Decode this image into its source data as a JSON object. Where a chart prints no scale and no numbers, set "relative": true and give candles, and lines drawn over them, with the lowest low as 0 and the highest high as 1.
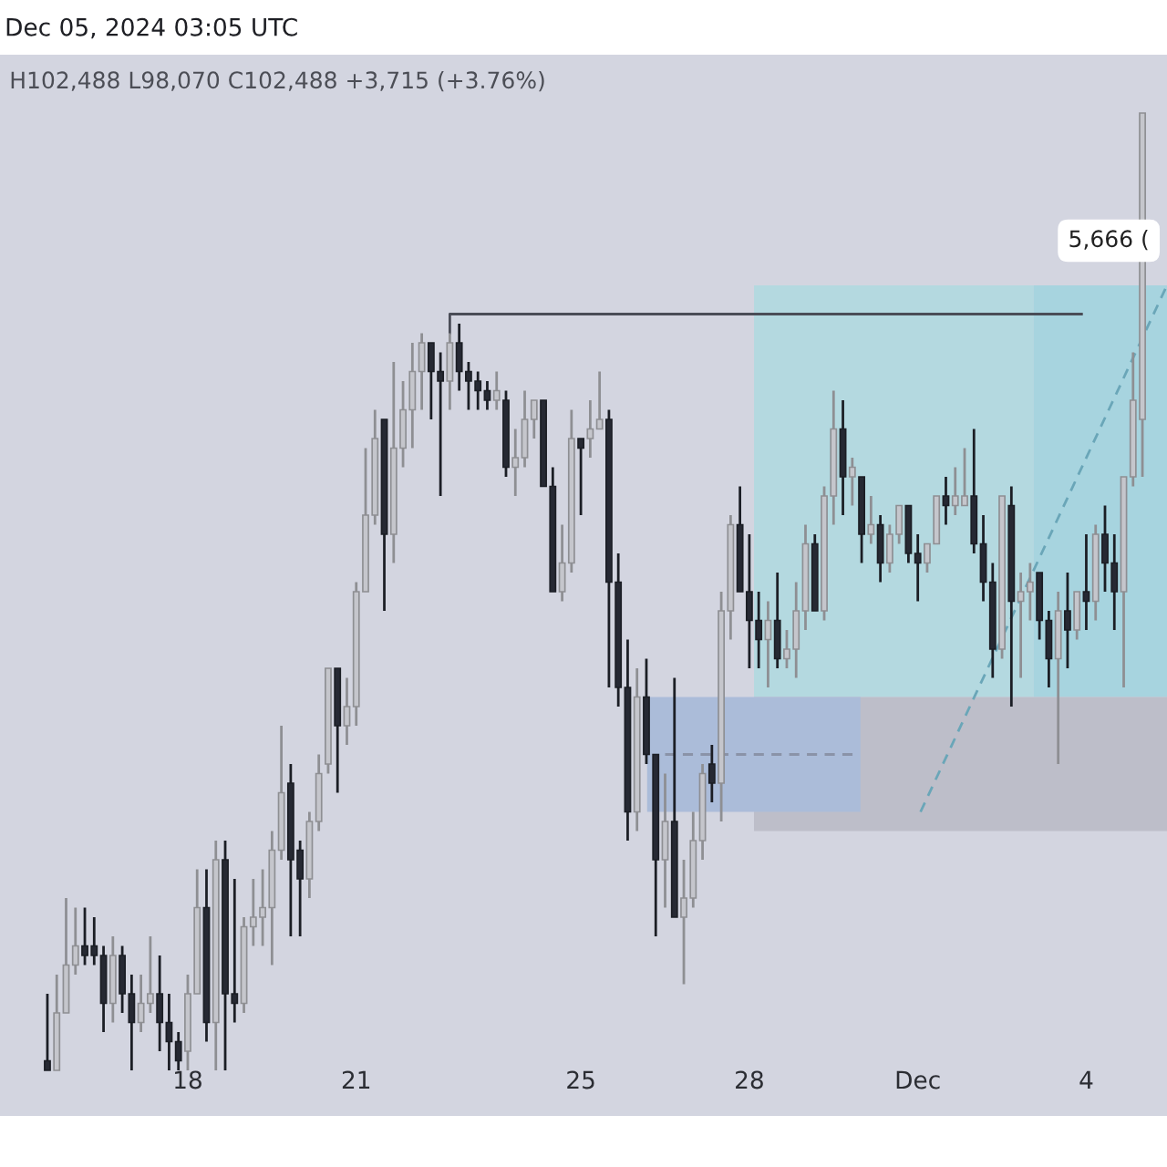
{
  "chart_data": {
    "type": "candlestick",
    "title": "Dec 05, 2024 03:05 UTC",
    "subtitle": "H102,488 L98,070 C102,488 +3,715 (+3.76%)",
    "relative": true,
    "tick_labels": "x",
    "xlim": [
      "2024-11-14T15:45",
      "2024-12-05T10:30"
    ],
    "xticks": [
      {
        "value": "2024-11-18",
        "label": "18"
      },
      {
        "value": "2024-11-21",
        "label": "21"
      },
      {
        "value": "2024-11-25",
        "label": "25"
      },
      {
        "value": "2024-11-28",
        "label": "28"
      },
      {
        "value": "2024-12-01",
        "label": "Dec"
      },
      {
        "value": "2024-12-04",
        "label": "4"
      }
    ],
    "x": [
      "2024-11-15T12:00",
      "2024-11-15T16:00",
      "2024-11-15T20:00",
      "2024-11-16T00:00",
      "2024-11-16T04:00",
      "2024-11-16T08:00",
      "2024-11-16T12:00",
      "2024-11-16T16:00",
      "2024-11-16T20:00",
      "2024-11-17T00:00",
      "2024-11-17T04:00",
      "2024-11-17T08:00",
      "2024-11-17T12:00",
      "2024-11-17T16:00",
      "2024-11-17T20:00",
      "2024-11-18T00:00",
      "2024-11-18T04:00",
      "2024-11-18T08:00",
      "2024-11-18T12:00",
      "2024-11-18T16:00",
      "2024-11-18T20:00",
      "2024-11-19T00:00",
      "2024-11-19T04:00",
      "2024-11-19T08:00",
      "2024-11-19T12:00",
      "2024-11-19T16:00",
      "2024-11-19T20:00",
      "2024-11-20T00:00",
      "2024-11-20T04:00",
      "2024-11-20T08:00",
      "2024-11-20T12:00",
      "2024-11-20T16:00",
      "2024-11-20T20:00",
      "2024-11-21T00:00",
      "2024-11-21T04:00",
      "2024-11-21T08:00",
      "2024-11-21T12:00",
      "2024-11-21T16:00",
      "2024-11-21T20:00",
      "2024-11-22T00:00",
      "2024-11-22T04:00",
      "2024-11-22T08:00",
      "2024-11-22T12:00",
      "2024-11-22T16:00",
      "2024-11-22T20:00",
      "2024-11-23T00:00",
      "2024-11-23T04:00",
      "2024-11-23T08:00",
      "2024-11-23T12:00",
      "2024-11-23T16:00",
      "2024-11-23T20:00",
      "2024-11-24T00:00",
      "2024-11-24T04:00",
      "2024-11-24T08:00",
      "2024-11-24T12:00",
      "2024-11-24T16:00",
      "2024-11-24T20:00",
      "2024-11-25T00:00",
      "2024-11-25T04:00",
      "2024-11-25T08:00",
      "2024-11-25T12:00",
      "2024-11-25T16:00",
      "2024-11-25T20:00",
      "2024-11-26T00:00",
      "2024-11-26T04:00",
      "2024-11-26T08:00",
      "2024-11-26T12:00",
      "2024-11-26T16:00",
      "2024-11-26T20:00",
      "2024-11-27T00:00",
      "2024-11-27T04:00",
      "2024-11-27T08:00",
      "2024-11-27T12:00",
      "2024-11-27T16:00",
      "2024-11-27T20:00",
      "2024-11-28T00:00",
      "2024-11-28T04:00",
      "2024-11-28T08:00",
      "2024-11-28T12:00",
      "2024-11-28T16:00",
      "2024-11-28T20:00",
      "2024-11-29T00:00",
      "2024-11-29T04:00",
      "2024-11-29T08:00",
      "2024-11-29T12:00",
      "2024-11-29T16:00",
      "2024-11-29T20:00",
      "2024-11-30T00:00",
      "2024-11-30T04:00",
      "2024-11-30T08:00",
      "2024-11-30T12:00",
      "2024-11-30T16:00",
      "2024-11-30T20:00",
      "2024-12-01T00:00",
      "2024-12-01T04:00",
      "2024-12-01T08:00",
      "2024-12-01T12:00",
      "2024-12-01T16:00",
      "2024-12-01T20:00",
      "2024-12-02T00:00",
      "2024-12-02T04:00",
      "2024-12-02T08:00",
      "2024-12-02T12:00",
      "2024-12-02T16:00",
      "2024-12-02T20:00",
      "2024-12-03T00:00",
      "2024-12-03T04:00",
      "2024-12-03T08:00",
      "2024-12-03T12:00",
      "2024-12-03T16:00",
      "2024-12-03T20:00",
      "2024-12-04T00:00",
      "2024-12-04T04:00",
      "2024-12-04T08:00",
      "2024-12-04T12:00",
      "2024-12-04T16:00",
      "2024-12-04T20:00",
      "2024-12-05T00:00"
    ],
    "ohlc": [
      [
        0.01,
        0.08,
        0.0,
        0.0
      ],
      [
        0.0,
        0.1,
        0.0,
        0.06
      ],
      [
        0.06,
        0.18,
        0.06,
        0.11
      ],
      [
        0.11,
        0.17,
        0.1,
        0.13
      ],
      [
        0.13,
        0.17,
        0.11,
        0.12
      ],
      [
        0.13,
        0.16,
        0.11,
        0.12
      ],
      [
        0.12,
        0.13,
        0.04,
        0.07
      ],
      [
        0.07,
        0.14,
        0.05,
        0.12
      ],
      [
        0.12,
        0.13,
        0.06,
        0.08
      ],
      [
        0.08,
        0.1,
        0.0,
        0.05
      ],
      [
        0.05,
        0.1,
        0.04,
        0.07
      ],
      [
        0.07,
        0.14,
        0.06,
        0.08
      ],
      [
        0.08,
        0.12,
        0.02,
        0.05
      ],
      [
        0.05,
        0.08,
        0.0,
        0.03
      ],
      [
        0.03,
        0.04,
        0.0,
        0.01
      ],
      [
        0.02,
        0.1,
        0.0,
        0.08
      ],
      [
        0.08,
        0.21,
        0.08,
        0.17
      ],
      [
        0.17,
        0.21,
        0.03,
        0.05
      ],
      [
        0.05,
        0.24,
        0.0,
        0.22
      ],
      [
        0.22,
        0.24,
        0.0,
        0.08
      ],
      [
        0.08,
        0.2,
        0.05,
        0.07
      ],
      [
        0.07,
        0.16,
        0.06,
        0.15
      ],
      [
        0.15,
        0.2,
        0.13,
        0.16
      ],
      [
        0.16,
        0.21,
        0.13,
        0.17
      ],
      [
        0.17,
        0.25,
        0.11,
        0.23
      ],
      [
        0.23,
        0.36,
        0.22,
        0.29
      ],
      [
        0.3,
        0.32,
        0.14,
        0.22
      ],
      [
        0.23,
        0.24,
        0.14,
        0.2
      ],
      [
        0.2,
        0.27,
        0.18,
        0.26
      ],
      [
        0.26,
        0.33,
        0.25,
        0.31
      ],
      [
        0.32,
        0.42,
        0.31,
        0.42
      ],
      [
        0.42,
        0.42,
        0.29,
        0.36
      ],
      [
        0.36,
        0.41,
        0.34,
        0.38
      ],
      [
        0.38,
        0.51,
        0.36,
        0.5
      ],
      [
        0.5,
        0.65,
        0.5,
        0.58
      ],
      [
        0.58,
        0.69,
        0.57,
        0.66
      ],
      [
        0.68,
        0.68,
        0.48,
        0.56
      ],
      [
        0.56,
        0.74,
        0.53,
        0.65
      ],
      [
        0.65,
        0.72,
        0.63,
        0.69
      ],
      [
        0.69,
        0.76,
        0.65,
        0.73
      ],
      [
        0.73,
        0.77,
        0.69,
        0.76
      ],
      [
        0.76,
        0.76,
        0.68,
        0.73
      ],
      [
        0.73,
        0.75,
        0.6,
        0.72
      ],
      [
        0.72,
        0.77,
        0.69,
        0.76
      ],
      [
        0.76,
        0.78,
        0.71,
        0.73
      ],
      [
        0.73,
        0.74,
        0.69,
        0.72
      ],
      [
        0.72,
        0.73,
        0.69,
        0.71
      ],
      [
        0.71,
        0.72,
        0.69,
        0.7
      ],
      [
        0.7,
        0.73,
        0.69,
        0.71
      ],
      [
        0.7,
        0.71,
        0.62,
        0.63
      ],
      [
        0.63,
        0.67,
        0.6,
        0.64
      ],
      [
        0.64,
        0.71,
        0.63,
        0.68
      ],
      [
        0.68,
        0.7,
        0.66,
        0.7
      ],
      [
        0.7,
        0.7,
        0.61,
        0.61
      ],
      [
        0.61,
        0.63,
        0.5,
        0.5
      ],
      [
        0.5,
        0.57,
        0.49,
        0.53
      ],
      [
        0.53,
        0.69,
        0.52,
        0.66
      ],
      [
        0.66,
        0.66,
        0.58,
        0.65
      ],
      [
        0.66,
        0.7,
        0.64,
        0.67
      ],
      [
        0.67,
        0.73,
        0.67,
        0.68
      ],
      [
        0.68,
        0.69,
        0.4,
        0.51
      ],
      [
        0.51,
        0.54,
        0.38,
        0.4
      ],
      [
        0.4,
        0.45,
        0.24,
        0.27
      ],
      [
        0.27,
        0.42,
        0.25,
        0.39
      ],
      [
        0.39,
        0.43,
        0.32,
        0.33
      ],
      [
        0.33,
        0.33,
        0.14,
        0.22
      ],
      [
        0.22,
        0.31,
        0.17,
        0.26
      ],
      [
        0.26,
        0.41,
        0.16,
        0.16
      ],
      [
        0.16,
        0.22,
        0.09,
        0.18
      ],
      [
        0.18,
        0.27,
        0.17,
        0.24
      ],
      [
        0.24,
        0.32,
        0.22,
        0.31
      ],
      [
        0.32,
        0.34,
        0.28,
        0.3
      ],
      [
        0.3,
        0.5,
        0.26,
        0.48
      ],
      [
        0.48,
        0.58,
        0.45,
        0.57
      ],
      [
        0.57,
        0.61,
        0.5,
        0.5
      ],
      [
        0.5,
        0.56,
        0.42,
        0.47
      ],
      [
        0.47,
        0.5,
        0.42,
        0.45
      ],
      [
        0.45,
        0.49,
        0.4,
        0.47
      ],
      [
        0.47,
        0.52,
        0.42,
        0.43
      ],
      [
        0.43,
        0.46,
        0.42,
        0.44
      ],
      [
        0.44,
        0.51,
        0.41,
        0.48
      ],
      [
        0.48,
        0.57,
        0.46,
        0.55
      ],
      [
        0.55,
        0.56,
        0.48,
        0.48
      ],
      [
        0.48,
        0.61,
        0.47,
        0.6
      ],
      [
        0.6,
        0.71,
        0.57,
        0.67
      ],
      [
        0.67,
        0.7,
        0.58,
        0.62
      ],
      [
        0.62,
        0.64,
        0.59,
        0.63
      ],
      [
        0.62,
        0.62,
        0.53,
        0.56
      ],
      [
        0.56,
        0.6,
        0.55,
        0.57
      ],
      [
        0.57,
        0.58,
        0.51,
        0.53
      ],
      [
        0.53,
        0.57,
        0.52,
        0.56
      ],
      [
        0.56,
        0.59,
        0.55,
        0.59
      ],
      [
        0.59,
        0.59,
        0.53,
        0.54
      ],
      [
        0.54,
        0.56,
        0.49,
        0.53
      ],
      [
        0.53,
        0.55,
        0.52,
        0.55
      ],
      [
        0.55,
        0.6,
        0.55,
        0.6
      ],
      [
        0.6,
        0.62,
        0.57,
        0.59
      ],
      [
        0.59,
        0.63,
        0.58,
        0.6
      ],
      [
        0.59,
        0.65,
        0.59,
        0.6
      ],
      [
        0.6,
        0.67,
        0.54,
        0.55
      ],
      [
        0.55,
        0.58,
        0.49,
        0.51
      ],
      [
        0.51,
        0.53,
        0.41,
        0.44
      ],
      [
        0.44,
        0.6,
        0.43,
        0.6
      ],
      [
        0.59,
        0.61,
        0.38,
        0.49
      ],
      [
        0.49,
        0.52,
        0.41,
        0.5
      ],
      [
        0.5,
        0.53,
        0.47,
        0.51
      ],
      [
        0.52,
        0.52,
        0.45,
        0.47
      ],
      [
        0.47,
        0.48,
        0.4,
        0.43
      ],
      [
        0.43,
        0.5,
        0.32,
        0.48
      ],
      [
        0.48,
        0.52,
        0.42,
        0.46
      ],
      [
        0.46,
        0.5,
        0.45,
        0.5
      ],
      [
        0.5,
        0.56,
        0.46,
        0.49
      ],
      [
        0.49,
        0.57,
        0.47,
        0.56
      ],
      [
        0.56,
        0.59,
        0.5,
        0.53
      ],
      [
        0.53,
        0.56,
        0.46,
        0.5
      ],
      [
        0.5,
        0.62,
        0.4,
        0.62
      ],
      [
        0.62,
        0.75,
        0.61,
        0.7
      ],
      [
        0.68,
        1.0,
        0.62,
        1.0
      ]
    ],
    "colors": [
      "#262933",
      "#c5c6cc",
      "#c5c6cc",
      "#c5c6cc",
      "#262933",
      "#262933",
      "#262933",
      "#c5c6cc",
      "#262933",
      "#262933",
      "#c5c6cc",
      "#c5c6cc",
      "#262933",
      "#262933",
      "#262933",
      "#c5c6cc",
      "#c5c6cc",
      "#262933",
      "#c5c6cc",
      "#262933",
      "#262933",
      "#c5c6cc",
      "#c5c6cc",
      "#c5c6cc",
      "#c5c6cc",
      "#c5c6cc",
      "#262933",
      "#262933",
      "#c5c6cc",
      "#c5c6cc",
      "#c5c6cc",
      "#262933",
      "#c5c6cc",
      "#c5c6cc",
      "#c5c6cc",
      "#c5c6cc",
      "#262933",
      "#c5c6cc",
      "#c5c6cc",
      "#c5c6cc",
      "#c5c6cc",
      "#262933",
      "#262933",
      "#c5c6cc",
      "#262933",
      "#262933",
      "#262933",
      "#262933",
      "#c5c6cc",
      "#262933",
      "#c5c6cc",
      "#c5c6cc",
      "#c5c6cc",
      "#262933",
      "#262933",
      "#c5c6cc",
      "#c5c6cc",
      "#262933",
      "#c5c6cc",
      "#c5c6cc",
      "#262933",
      "#262933",
      "#262933",
      "#c5c6cc",
      "#262933",
      "#262933",
      "#c5c6cc",
      "#262933",
      "#c5c6cc",
      "#c5c6cc",
      "#c5c6cc",
      "#262933",
      "#c5c6cc",
      "#c5c6cc",
      "#262933",
      "#262933",
      "#262933",
      "#c5c6cc",
      "#262933",
      "#c5c6cc",
      "#c5c6cc",
      "#c5c6cc",
      "#262933",
      "#c5c6cc",
      "#c5c6cc",
      "#262933",
      "#c5c6cc",
      "#262933",
      "#c5c6cc",
      "#262933",
      "#c5c6cc",
      "#c5c6cc",
      "#262933",
      "#262933",
      "#c5c6cc",
      "#c5c6cc",
      "#262933",
      "#c5c6cc",
      "#c5c6cc",
      "#262933",
      "#262933",
      "#262933",
      "#c5c6cc",
      "#262933",
      "#c5c6cc",
      "#c5c6cc",
      "#262933",
      "#262933",
      "#c5c6cc",
      "#262933",
      "#c5c6cc",
      "#262933",
      "#c5c6cc",
      "#262933",
      "#262933",
      "#c5c6cc",
      "#c5c6cc",
      "#c5c6cc"
    ],
    "series": [
      {
        "type": "area",
        "x": [
          "2024-11-28T02:00",
          "2024-12-03T01:30",
          "2024-12-03T01:30",
          "2024-11-28T02:00"
        ],
        "values": [
          0.82,
          0.82,
          0.39,
          0.39
        ],
        "color": "#b4d9e0"
      },
      {
        "type": "area",
        "x": [
          "2024-12-03T01:30",
          "2024-12-05T10:30",
          "2024-12-05T10:30",
          "2024-12-03T01:30"
        ],
        "values": [
          0.82,
          0.82,
          0.39,
          0.39
        ],
        "color": "#a7d4df"
      },
      {
        "type": "area",
        "x": [
          "2024-11-28T02:00",
          "2024-12-05T10:30",
          "2024-12-05T10:30",
          "2024-11-28T02:00"
        ],
        "values": [
          0.39,
          0.39,
          0.25,
          0.25
        ],
        "color": "#bdbec9"
      },
      {
        "type": "area",
        "x": [
          "2024-11-26T04:20",
          "2024-11-29T23:30",
          "2024-11-29T23:30",
          "2024-11-26T04:20"
        ],
        "values": [
          0.39,
          0.39,
          0.27,
          0.27
        ],
        "color": "#abbcd9"
      },
      {
        "type": "line",
        "x": [
          "2024-11-26T12:00",
          "2024-11-29T22:00"
        ],
        "values": [
          0.33,
          0.33
        ],
        "color": "#8a93a8",
        "line_style": "dashed"
      },
      {
        "type": "line",
        "x": [
          "2024-11-22T16:00",
          "2024-11-22T16:00",
          "2024-12-03T22:00"
        ],
        "values": [
          0.77,
          0.79,
          0.79
        ],
        "color": "#4a4d57",
        "line_style": "solid"
      },
      {
        "type": "line",
        "x": [
          "2024-12-01T01:10",
          "2024-12-05T10:30"
        ],
        "values": [
          0.27,
          0.82
        ],
        "color": "#6aa6b8",
        "line_style": "dashed"
      }
    ],
    "annotations": [
      "5,666 ("
    ]
  }
}
